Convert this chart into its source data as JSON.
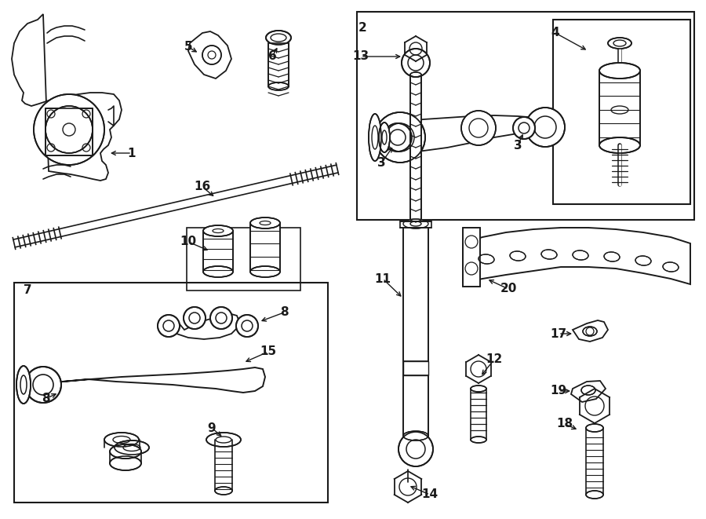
{
  "bg_color": "#ffffff",
  "line_color": "#1a1a1a",
  "fig_width": 9.0,
  "fig_height": 6.61,
  "dpi": 100,
  "xmax": 900,
  "ymax": 661
}
